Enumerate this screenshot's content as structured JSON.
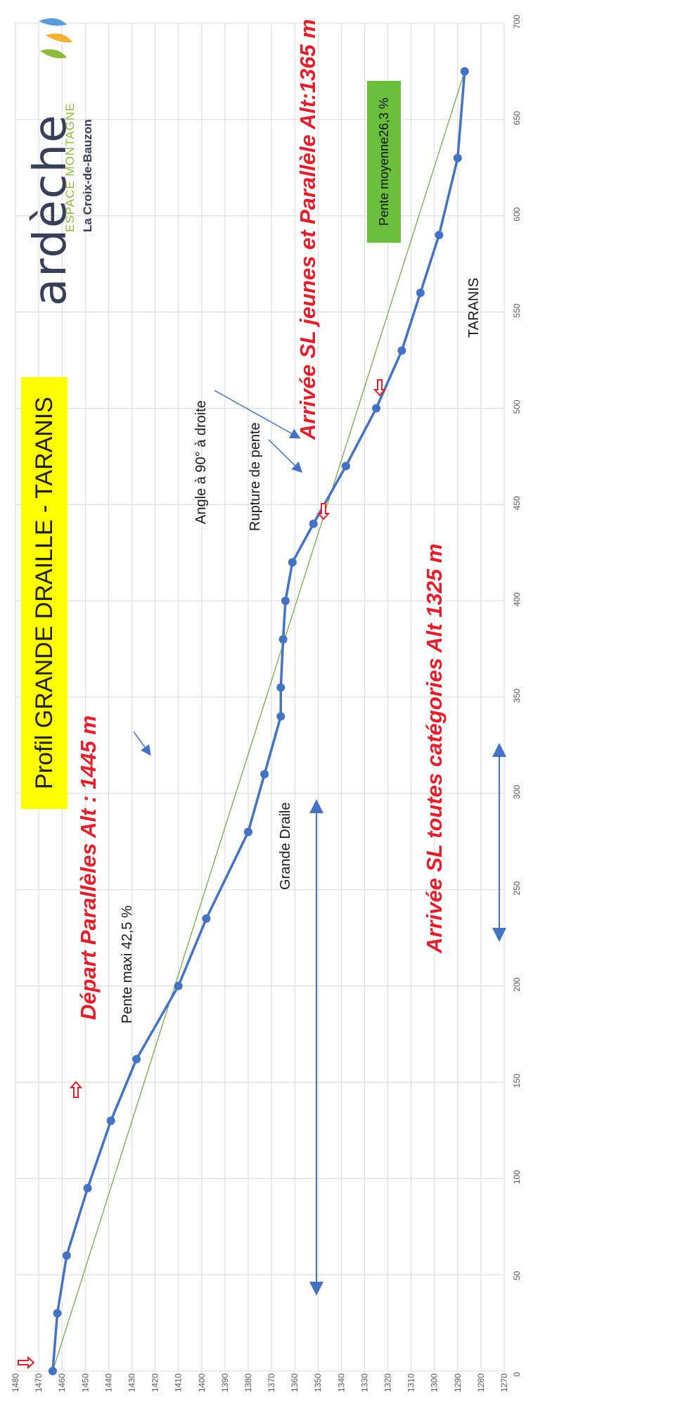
{
  "chart_data": {
    "type": "line",
    "title": "Profil GRANDE DRAILLE - TARANIS",
    "x_ticks": [
      0,
      50,
      100,
      150,
      200,
      250,
      300,
      350,
      400,
      450,
      500,
      550,
      600,
      650,
      700
    ],
    "y_ticks": [
      1270,
      1280,
      1290,
      1300,
      1310,
      1320,
      1330,
      1340,
      1350,
      1360,
      1370,
      1380,
      1390,
      1400,
      1410,
      1420,
      1430,
      1440,
      1450,
      1460,
      1470,
      1480
    ],
    "xlim": [
      0,
      700
    ],
    "ylim": [
      1270,
      1480
    ],
    "grid": true,
    "orientation": "rotated -90°",
    "series": [
      {
        "name": "",
        "color": "#4472c4",
        "x": [
          0,
          30,
          60,
          95,
          130,
          162,
          200,
          235,
          280,
          310,
          340,
          355,
          380,
          400,
          420,
          440,
          470,
          500,
          530,
          560,
          590,
          630,
          675
        ],
        "y": [
          1464,
          1462,
          1458,
          1449,
          1439,
          1428,
          1410,
          1398,
          1380,
          1373,
          1366,
          1366,
          1365,
          1364,
          1361,
          1352,
          1338,
          1325,
          1314,
          1306,
          1298,
          1290,
          1287
        ]
      },
      {
        "name": "",
        "color": "#70ad47",
        "x": [
          0,
          675
        ],
        "y": [
          1464,
          1287
        ]
      }
    ],
    "annotations": [
      {
        "text": "Départ Parallèles Alt : 1445 m",
        "style": "red"
      },
      {
        "text": "Arrivée SL toutes catégories Alt 1325 m",
        "style": "red"
      },
      {
        "text": "Arrivée SL jeunes et Parallèle Alt:1365 m",
        "style": "red"
      },
      {
        "text": "Pente maxi 42,5 %",
        "style": "black"
      },
      {
        "text": "Angle à 90° à droite",
        "style": "black"
      },
      {
        "text": "Rupture de pente",
        "style": "black"
      },
      {
        "text": "Grande Draile",
        "style": "black"
      },
      {
        "text": "TARANIS",
        "style": "black"
      },
      {
        "text": "Pente moyenne26,3 %",
        "style": "green-box"
      }
    ]
  },
  "logo": {
    "brand": "ardèche",
    "tagline": "ESPACE MONTAGNE",
    "place": "La Croix-de-Bauzon"
  }
}
